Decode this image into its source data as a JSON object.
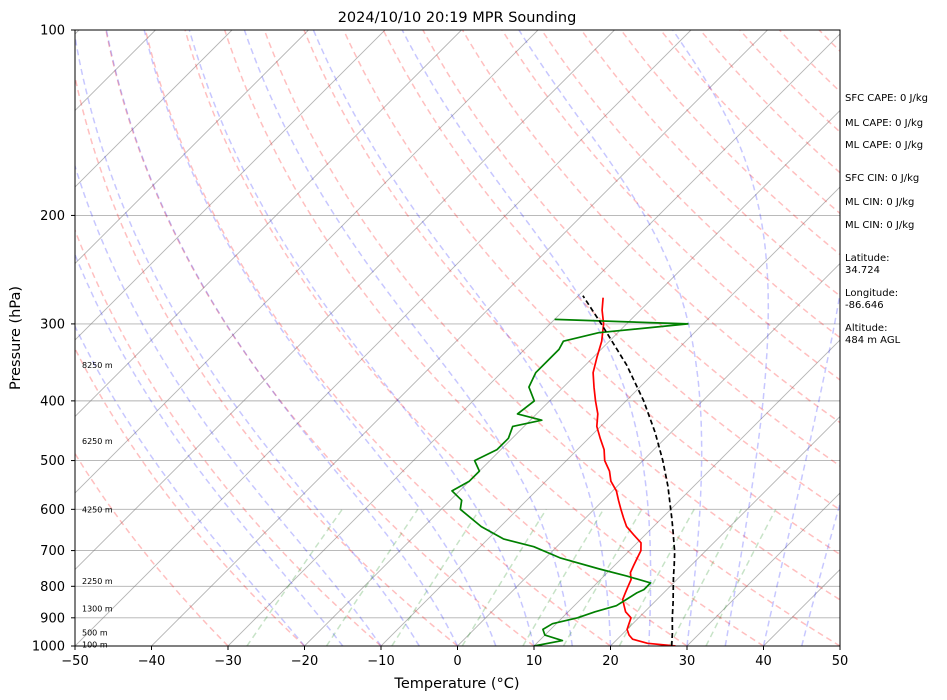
{
  "chart_data": {
    "type": "skew-t",
    "title": "2024/10/10 20:19 MPR Sounding",
    "xlabel": "Temperature (°C)",
    "ylabel": "Pressure (hPa)",
    "xlim": [
      -50,
      50
    ],
    "ylim": [
      1000,
      100
    ],
    "y_scale": "log",
    "x_ticks": [
      "−50",
      "−40",
      "−30",
      "−20",
      "−10",
      "0",
      "10",
      "20",
      "30",
      "40",
      "50"
    ],
    "y_ticks": [
      1000,
      900,
      800,
      700,
      600,
      500,
      400,
      300,
      200,
      100
    ],
    "grid": "horizontal at pressure ticks",
    "background_lines": [
      "dry adiabats",
      "moist adiabats",
      "mixing ratio lines",
      "skewed isotherms"
    ],
    "colors": {
      "temperature": "#ff0000",
      "dewpoint": "#008000",
      "parcel": "#000000",
      "dry_adiabat": "#ff0000",
      "moist_adiabat": "#0000ff",
      "mixing_ratio": "#008000",
      "isotherm": "#808080",
      "grid": "#b0b0b0"
    },
    "series": [
      {
        "key": "temperature",
        "p": [
          1000,
          990,
          975,
          960,
          940,
          920,
          900,
          880,
          860,
          840,
          820,
          800,
          780,
          760,
          740,
          720,
          700,
          680,
          660,
          640,
          620,
          600,
          580,
          560,
          540,
          520,
          500,
          480,
          460,
          440,
          420,
          400,
          380,
          360,
          340,
          320,
          300,
          285,
          272
        ],
        "t": [
          28.5,
          24.5,
          22.0,
          21.0,
          20.0,
          19.5,
          19.0,
          17.5,
          16.5,
          15.5,
          15.0,
          14.5,
          14.0,
          13.0,
          12.5,
          12.0,
          11.5,
          10.5,
          8.5,
          6.5,
          5.0,
          3.5,
          2.0,
          0.5,
          -1.5,
          -3.0,
          -5.0,
          -6.5,
          -8.5,
          -10.5,
          -12.0,
          -14.0,
          -16.0,
          -18.0,
          -19.5,
          -21.0,
          -23.0,
          -25.0,
          -26.5
        ]
      },
      {
        "key": "dewpoint",
        "p": [
          1000,
          980,
          960,
          940,
          920,
          900,
          880,
          860,
          840,
          820,
          810,
          790,
          770,
          750,
          720,
          690,
          670,
          640,
          600,
          580,
          560,
          540,
          520,
          500,
          480,
          460,
          440,
          430,
          420,
          400,
          380,
          360,
          340,
          330,
          320,
          310,
          300,
          295
        ],
        "t": [
          10.0,
          13.0,
          10.0,
          9.0,
          9.5,
          12.0,
          13.5,
          15.5,
          16.0,
          16.5,
          17.0,
          17.0,
          13.0,
          8.5,
          2.0,
          -3.0,
          -8.0,
          -12.5,
          -17.5,
          -18.5,
          -21.0,
          -20.0,
          -20.0,
          -22.0,
          -20.5,
          -20.5,
          -21.5,
          -18.5,
          -22.5,
          -22.0,
          -24.5,
          -25.5,
          -25.5,
          -25.5,
          -26.0,
          -22.5,
          -12.0,
          -30.0
        ]
      },
      {
        "key": "parcel",
        "p": [
          1000,
          950,
          900,
          850,
          800,
          770,
          740,
          710,
          700,
          680,
          650,
          620,
          600,
          550,
          500,
          450,
          400,
          350,
          300,
          270
        ],
        "t": [
          28.0,
          26.3,
          24.4,
          22.5,
          20.4,
          19.1,
          17.8,
          16.4,
          15.9,
          14.8,
          13.1,
          11.3,
          10.0,
          6.6,
          2.6,
          -2.1,
          -7.7,
          -14.6,
          -23.3,
          -29.4
        ]
      }
    ],
    "height_labels": [
      {
        "p": 350,
        "text": "8250 m"
      },
      {
        "p": 465,
        "text": "6250 m"
      },
      {
        "p": 600,
        "text": "4250 m"
      },
      {
        "p": 785,
        "text": "2250 m"
      },
      {
        "p": 870,
        "text": "1300 m"
      },
      {
        "p": 950,
        "text": "500 m"
      },
      {
        "p": 995,
        "text": "100 m"
      }
    ],
    "annotations": [
      "SFC CAPE: 0 J/kg",
      "ML CAPE: 0 J/kg",
      "ML CAPE: 0 J/kg",
      "SFC CIN: 0 J/kg",
      "ML CIN: 0 J/kg",
      "ML CIN: 0 J/kg",
      "Latitude:",
      "34.724",
      "Longitude:",
      "-86.646",
      "Altitude:",
      "484 m AGL"
    ]
  }
}
